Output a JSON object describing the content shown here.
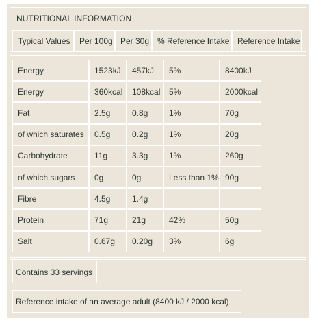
{
  "title": "NUTRITIONAL INFORMATION",
  "headers": [
    "Typical Values",
    "Per 100g",
    "Per 30g",
    "% Reference Intake",
    "Reference Intake"
  ],
  "rows": [
    [
      "Energy",
      "1523kJ",
      "457kJ",
      "5%",
      "8400kJ"
    ],
    [
      "Energy",
      "360kcal",
      "108kcal",
      "5%",
      "2000kcal"
    ],
    [
      "Fat",
      "2.5g",
      "0.8g",
      "1%",
      "70g"
    ],
    [
      "of which saturates",
      "0.5g",
      "0.2g",
      "1%",
      "20g"
    ],
    [
      "Carbohydrate",
      "11g",
      "3.3g",
      "1%",
      "260g"
    ],
    [
      "of which sugars",
      "0g",
      "0g",
      "Less than 1%",
      "90g"
    ],
    [
      "Fibre",
      "4.5g",
      "1.4g",
      "",
      ""
    ],
    [
      "Protein",
      "71g",
      "21g",
      "42%",
      "50g"
    ],
    [
      "Salt",
      "0.67g",
      "0.20g",
      "3%",
      "6g"
    ]
  ],
  "servings": "Contains 33 servings",
  "reference_note": "Reference intake of an average adult (8400 kJ / 2000 kcal)"
}
